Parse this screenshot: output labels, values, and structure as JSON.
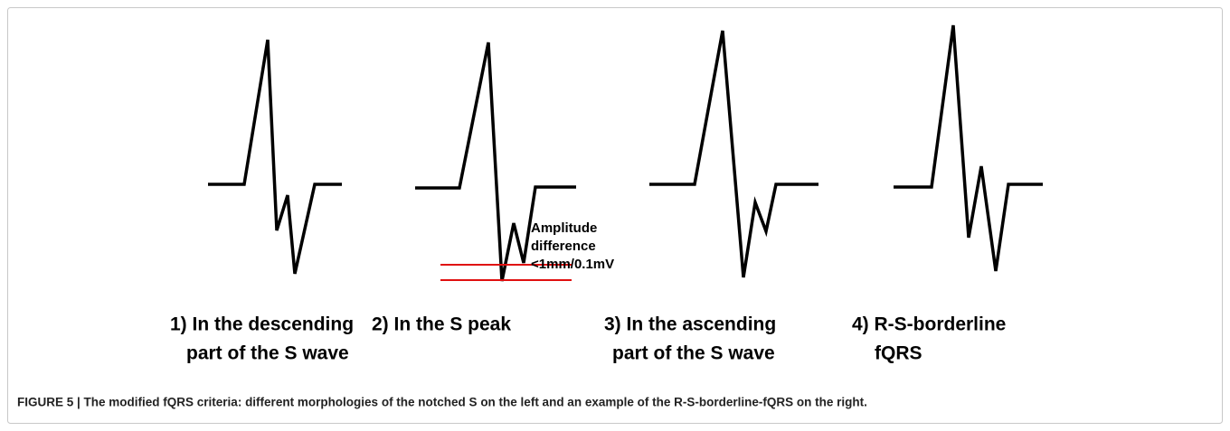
{
  "panels": [
    {
      "lines": [
        "1) In the descending",
        "part of the S wave"
      ]
    },
    {
      "lines": [
        "2) In the S peak"
      ]
    },
    {
      "lines": [
        "3) In the ascending",
        "part of the S wave"
      ]
    },
    {
      "lines": [
        "4) R-S-borderline",
        "fQRS"
      ]
    }
  ],
  "annotation": {
    "lines": [
      "Amplitude",
      "difference",
      "<1mm/0.1mV"
    ]
  },
  "caption": "FIGURE 5 | The modified fQRS criteria: different morphologies of the notched S on the left and an example of the R-S-borderline-fQRS on the right."
}
